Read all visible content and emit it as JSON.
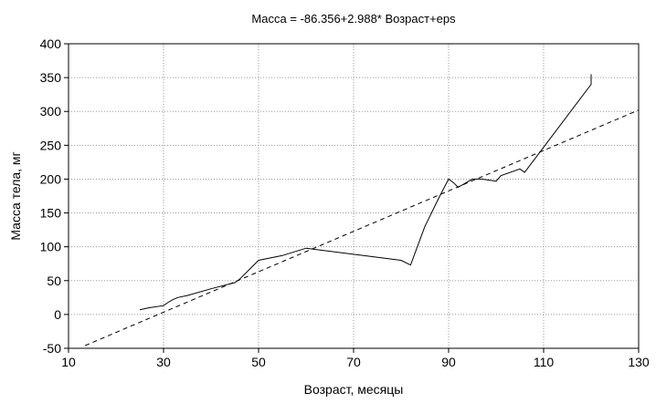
{
  "chart_data": {
    "type": "line",
    "title": "Масса = -86.356+2.988* Возраст+eps",
    "xlabel": "Возраст, месяцы",
    "ylabel": "Масса тела, мг",
    "xlim": [
      10,
      130
    ],
    "ylim": [
      -50,
      400
    ],
    "xticks": [
      10,
      30,
      50,
      70,
      90,
      110,
      130
    ],
    "yticks": [
      -50,
      0,
      50,
      100,
      150,
      200,
      250,
      300,
      350,
      400
    ],
    "grid": true,
    "series": [
      {
        "style": "solid",
        "x": [
          25,
          27,
          30,
          31,
          32,
          33,
          35,
          40,
          45,
          46,
          50,
          55,
          60,
          80,
          82,
          85,
          88,
          90,
          91,
          92,
          95,
          97,
          100,
          101,
          105,
          106,
          120,
          120
        ],
        "y": [
          7,
          10,
          13,
          18,
          22,
          25,
          28,
          38,
          47,
          52,
          80,
          87,
          98,
          80,
          73,
          130,
          173,
          200,
          195,
          188,
          200,
          200,
          197,
          205,
          215,
          210,
          340,
          355
        ]
      },
      {
        "style": "dashed",
        "x": [
          13.5,
          130
        ],
        "y": [
          -46,
          302
        ]
      }
    ]
  }
}
